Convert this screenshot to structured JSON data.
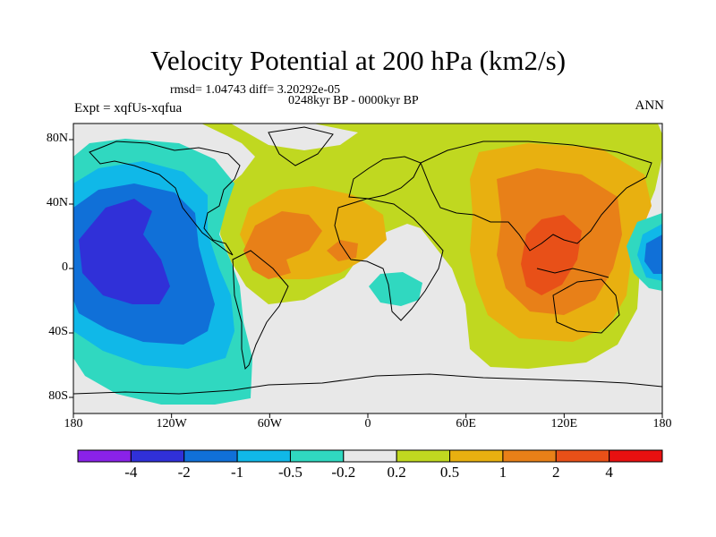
{
  "title": "Velocity Potential at 200 hPa (km2/s)",
  "stats_line": "rmsd= 1.04743 diff= 3.20292e-05",
  "period_line": "0248kyr BP - 0000kyr BP",
  "experiment_label": "Expt = xqfUs-xqfua",
  "season_label": "ANN",
  "map": {
    "lon_range": [
      -180,
      180
    ],
    "lat_range": [
      -90,
      90
    ],
    "lat_ticks": [
      {
        "value": 80,
        "label": "80N"
      },
      {
        "value": 40,
        "label": "40N"
      },
      {
        "value": 0,
        "label": "0"
      },
      {
        "value": -40,
        "label": "40S"
      },
      {
        "value": -80,
        "label": "80S"
      }
    ],
    "lon_ticks": [
      {
        "value": -180,
        "label": "180"
      },
      {
        "value": -120,
        "label": "120W"
      },
      {
        "value": -60,
        "label": "60W"
      },
      {
        "value": 0,
        "label": "0"
      },
      {
        "value": 60,
        "label": "60E"
      },
      {
        "value": 120,
        "label": "120E"
      },
      {
        "value": 180,
        "label": "180"
      }
    ]
  },
  "colorbar": {
    "colors": [
      "#8a22e8",
      "#3030d8",
      "#1070d8",
      "#10b8e8",
      "#30d8c0",
      "#e8e8e8",
      "#c0d820",
      "#e8b010",
      "#e88018",
      "#e85018",
      "#e81010"
    ],
    "labels": [
      "-4",
      "-2",
      "-1",
      "-0.5",
      "-0.2",
      "0.2",
      "0.5",
      "1",
      "2",
      "4"
    ]
  }
}
